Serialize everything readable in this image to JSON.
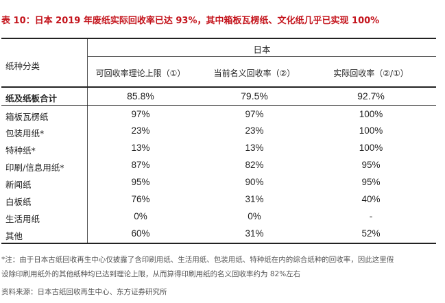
{
  "title": {
    "prefix": "表 10：日本 2019 年废纸实际回收率已达 93%，其中箱板瓦楞纸、文化纸几乎已实现 100%"
  },
  "header": {
    "category_label": "纸种分类",
    "group_label": "日本",
    "columns": [
      "可回收率理论上限（①）",
      "当前名义回收率（②）",
      "实际回收率（②/①）"
    ]
  },
  "total_row": {
    "label": "纸及纸板合计",
    "values": [
      "85.8%",
      "79.5%",
      "92.7%"
    ]
  },
  "rows": [
    {
      "label": "箱板瓦楞纸",
      "values": [
        "97%",
        "97%",
        "100%"
      ]
    },
    {
      "label": "包装用纸*",
      "values": [
        "23%",
        "23%",
        "100%"
      ]
    },
    {
      "label": "特种纸*",
      "values": [
        "13%",
        "13%",
        "100%"
      ]
    },
    {
      "label": "印刷/信息用纸*",
      "values": [
        "87%",
        "82%",
        "95%"
      ]
    },
    {
      "label": "新闻纸",
      "values": [
        "95%",
        "90%",
        "95%"
      ]
    },
    {
      "label": "白板纸",
      "values": [
        "76%",
        "31%",
        "40%"
      ]
    },
    {
      "label": "生活用纸",
      "values": [
        "0%",
        "0%",
        "-"
      ]
    },
    {
      "label": "其他",
      "values": [
        "60%",
        "31%",
        "52%"
      ]
    }
  ],
  "note": {
    "line1": "*注：由于日本古纸回收再生中心仅披露了含印刷用纸、生活用纸、包装用纸、特种纸在内的综合纸种的回收率，因此这里假",
    "line2": "设除印刷用纸外的其他纸种均已达到理论上限，从而算得印刷用纸的名义回收率约为 82%左右"
  },
  "source": "资料来源：日本古纸回收再生中心、东方证券研究所",
  "colors": {
    "title": "#c4141c",
    "text": "#222222",
    "note": "#555555"
  }
}
